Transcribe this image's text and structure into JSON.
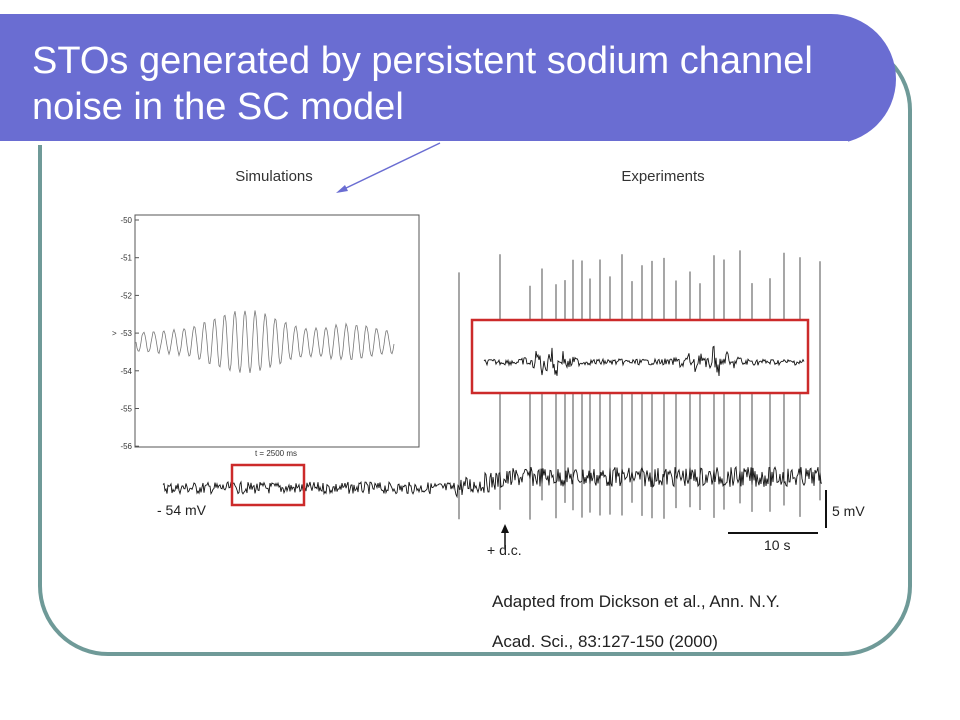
{
  "slide": {
    "title": "STOs generated by persistent sodium channel noise in the SC model",
    "citation_line1": "Adapted from Dickson et al., Ann.  N.Y.",
    "citation_line2": "Acad. Sci., 83:127-150 (2000)"
  },
  "figure": {
    "simulations_label": "Simulations",
    "experiments_label": "Experiments",
    "y_ticks": [
      "-50",
      "-51",
      "-52",
      "-53",
      "-54",
      "-55",
      "-56"
    ],
    "y_axis_label": ">",
    "time_label": "t = 2500 ms",
    "baseline_label": "- 54 mV",
    "dc_label": "+ d.c.",
    "scale_mv_label": "5 mV",
    "scale_time_label": "10 s"
  },
  "colors": {
    "title_bg": "#6a6dd2",
    "frame_border": "#6f9a98",
    "highlight_box": "#cc2a2a",
    "arrow": "#6a6dd2"
  }
}
